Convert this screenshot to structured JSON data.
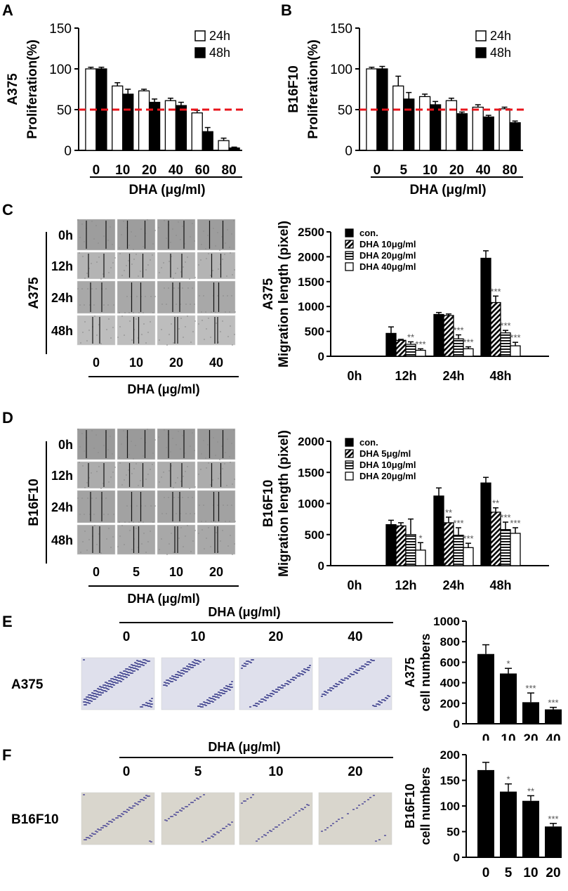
{
  "panels": {
    "a": "A",
    "b": "B",
    "c": "C",
    "d": "D",
    "e": "E",
    "f": "F"
  },
  "common": {
    "dha_label": "DHA (μg/ml)",
    "label_24h": "24h",
    "label_48h": "48h"
  },
  "chart_data": [
    {
      "id": "A",
      "type": "bar",
      "ylabel": [
        "A375",
        "Proliferation(%)"
      ],
      "xlabel": "DHA (μg/ml)",
      "categories": [
        "0",
        "10",
        "20",
        "40",
        "60",
        "80"
      ],
      "ylim": [
        0,
        150
      ],
      "yticks": [
        0,
        50,
        100,
        150
      ],
      "reference_line": 50,
      "legend": "top-right",
      "series": [
        {
          "name": "24h",
          "values": [
            100,
            79,
            73,
            61,
            46,
            12
          ],
          "errors": [
            2,
            4,
            2,
            3,
            3,
            3
          ],
          "fill": "white"
        },
        {
          "name": "48h",
          "values": [
            100,
            69,
            59,
            55,
            23,
            3
          ],
          "errors": [
            2,
            6,
            4,
            4,
            5,
            1
          ],
          "fill": "black"
        }
      ]
    },
    {
      "id": "B",
      "type": "bar",
      "ylabel": [
        "B16F10",
        "Proliferation(%)"
      ],
      "xlabel": "DHA (μg/ml)",
      "categories": [
        "0",
        "5",
        "10",
        "20",
        "40",
        "80"
      ],
      "ylim": [
        0,
        150
      ],
      "yticks": [
        0,
        50,
        100,
        150
      ],
      "reference_line": 50,
      "legend": "top-right",
      "series": [
        {
          "name": "24h",
          "values": [
            100,
            79,
            66,
            61,
            53,
            51
          ],
          "errors": [
            2,
            12,
            3,
            3,
            3,
            2
          ],
          "fill": "white"
        },
        {
          "name": "48h",
          "values": [
            100,
            63,
            56,
            45,
            41,
            34
          ],
          "errors": [
            3,
            8,
            4,
            2,
            2,
            2
          ],
          "fill": "black"
        }
      ]
    },
    {
      "id": "C",
      "type": "bar",
      "ylabel": [
        "A375",
        "Migration length (pixel)"
      ],
      "categories": [
        "0h",
        "12h",
        "24h",
        "48h"
      ],
      "ylim": [
        0,
        2500
      ],
      "yticks": [
        0,
        500,
        1000,
        1500,
        2000,
        2500
      ],
      "legend": "top-left",
      "series": [
        {
          "name": "con.",
          "values": [
            0,
            460,
            840,
            1970
          ],
          "errors": [
            0,
            130,
            40,
            150
          ],
          "stars": [
            "",
            "",
            "",
            ""
          ],
          "fill": "solid"
        },
        {
          "name": "DHA 10μg/ml",
          "values": [
            0,
            320,
            820,
            1080
          ],
          "errors": [
            0,
            20,
            30,
            130
          ],
          "stars": [
            "",
            "",
            "",
            "***"
          ],
          "fill": "diag"
        },
        {
          "name": "DHA 20μg/ml",
          "values": [
            0,
            240,
            350,
            470
          ],
          "errors": [
            0,
            50,
            80,
            50
          ],
          "stars": [
            "",
            "**",
            "***",
            "***"
          ],
          "fill": "horiz"
        },
        {
          "name": "DHA 40μg/ml",
          "values": [
            0,
            120,
            150,
            210
          ],
          "errors": [
            0,
            30,
            40,
            70
          ],
          "stars": [
            "",
            "***",
            "***",
            "***"
          ],
          "fill": "white"
        }
      ]
    },
    {
      "id": "D",
      "type": "bar",
      "ylabel": [
        "B16F10",
        "Migration length (pixel)"
      ],
      "categories": [
        "0h",
        "12h",
        "24h",
        "48h"
      ],
      "ylim": [
        0,
        2000
      ],
      "yticks": [
        0,
        500,
        1000,
        1500,
        2000
      ],
      "legend": "top-left",
      "series": [
        {
          "name": "con.",
          "values": [
            0,
            660,
            1120,
            1330
          ],
          "errors": [
            0,
            70,
            130,
            90
          ],
          "stars": [
            "",
            "",
            "",
            ""
          ],
          "fill": "solid"
        },
        {
          "name": "DHA 5μg/ml",
          "values": [
            0,
            640,
            690,
            860
          ],
          "errors": [
            0,
            50,
            90,
            70
          ],
          "stars": [
            "",
            "",
            "**",
            "**"
          ],
          "fill": "diag"
        },
        {
          "name": "DHA 10μg/ml",
          "values": [
            0,
            500,
            490,
            580
          ],
          "errors": [
            0,
            250,
            120,
            120
          ],
          "stars": [
            "",
            "",
            "***",
            "***"
          ],
          "fill": "horiz"
        },
        {
          "name": "DHA 20μg/ml",
          "values": [
            0,
            250,
            290,
            520
          ],
          "errors": [
            0,
            120,
            70,
            90
          ],
          "stars": [
            "",
            "*",
            "***",
            "***"
          ],
          "fill": "white"
        }
      ]
    },
    {
      "id": "E",
      "type": "bar",
      "ylabel": [
        "A375",
        "cell numbers"
      ],
      "categories": [
        "0",
        "10",
        "20",
        "40"
      ],
      "ylim": [
        0,
        1000
      ],
      "yticks": [
        0,
        200,
        400,
        600,
        800,
        1000
      ],
      "series": [
        {
          "values": [
            680,
            490,
            210,
            140
          ],
          "errors": [
            90,
            50,
            90,
            20
          ],
          "stars": [
            "",
            "*",
            "***",
            "***"
          ]
        }
      ]
    },
    {
      "id": "F",
      "type": "bar",
      "ylabel": [
        "B16F10",
        "cell numbers"
      ],
      "categories": [
        "0",
        "5",
        "10",
        "20"
      ],
      "ylim": [
        0,
        200
      ],
      "yticks": [
        0,
        50,
        100,
        150,
        200
      ],
      "series": [
        {
          "values": [
            170,
            128,
            110,
            60
          ],
          "errors": [
            15,
            15,
            10,
            6
          ],
          "stars": [
            "",
            "*",
            "**",
            "***"
          ]
        }
      ]
    }
  ],
  "scratch": {
    "c": {
      "cell": "A375",
      "times": [
        "0h",
        "12h",
        "24h",
        "48h"
      ],
      "doses": [
        "0",
        "10",
        "20",
        "40"
      ],
      "xlabel": "DHA (μg/ml)"
    },
    "d": {
      "cell": "B16F10",
      "times": [
        "0h",
        "12h",
        "24h",
        "48h"
      ],
      "doses": [
        "0",
        "5",
        "10",
        "20"
      ],
      "xlabel": "DHA (μg/ml)"
    }
  },
  "transwell": {
    "e": {
      "cell": "A375",
      "header": "DHA (μg/ml)",
      "doses": [
        "0",
        "10",
        "20",
        "40"
      ]
    },
    "f": {
      "cell": "B16F10",
      "header": "DHA (μg/ml)",
      "doses": [
        "0",
        "5",
        "10",
        "20"
      ]
    }
  }
}
